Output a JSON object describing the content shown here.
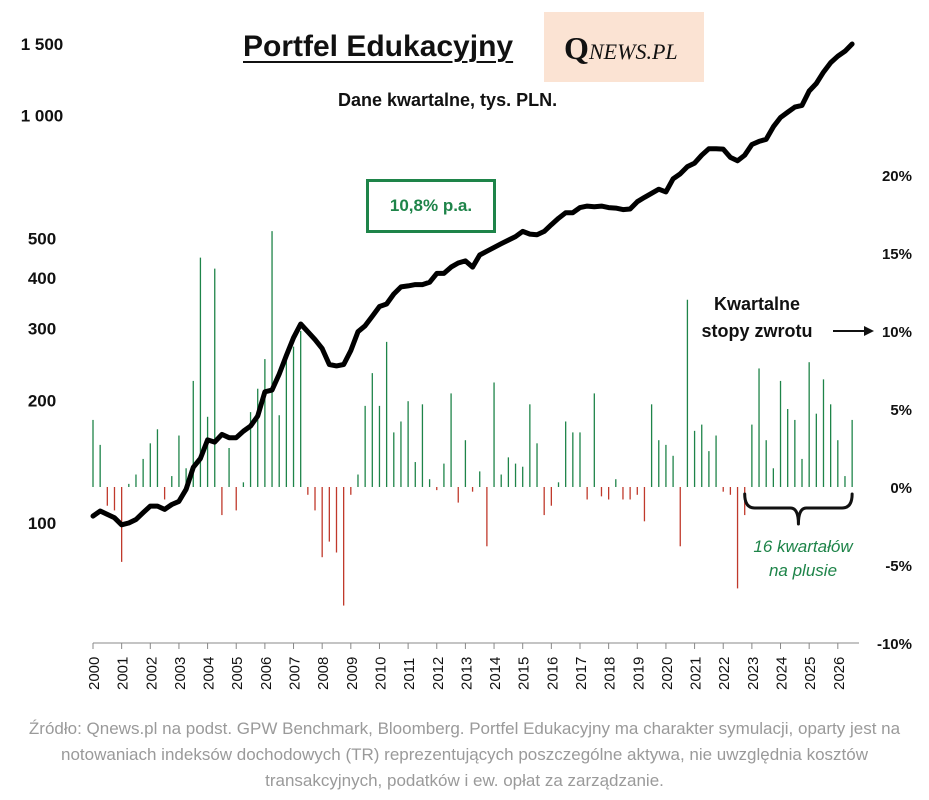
{
  "title": "Portfel Edukacyjny",
  "logo": {
    "q": "Q",
    "rest": "NEWS.PL"
  },
  "subtitle": "Dane kwartalne, tys. PLN.",
  "annotations": {
    "cagr": "10,8% p.a.",
    "returns_label_line1": "Kwartalne",
    "returns_label_line2": "stopy zwrotu",
    "positive_line1": "16 kwartałów",
    "positive_line2": "na plusie"
  },
  "source": "Źródło: Qnews.pl na podst. GPW Benchmark, Bloomberg. Portfel Edukacyjny ma charakter symulacji, oparty jest na notowaniach indeksów dochodowych (TR) reprezentujących poszczególne aktywa, nie uwzględnia kosztów transakcyjnych, podatków i ew. opłat za zarządzanie.",
  "colors": {
    "line": "#000000",
    "positive": "#1e8449",
    "negative": "#c0392b",
    "box_border": "#1e8449",
    "logo_bg": "#fbe3d3",
    "source_text": "#9a9a9a"
  },
  "chart_data": {
    "type": "bar+line",
    "x_axis": {
      "type": "year",
      "range": [
        2000.0,
        2026.6
      ],
      "tick_labels": [
        "2000",
        "2001",
        "2002",
        "2003",
        "2004",
        "2005",
        "2006",
        "2007",
        "2008",
        "2009",
        "2010",
        "2011",
        "2012",
        "2013",
        "2014",
        "2015",
        "2016",
        "2017",
        "2018",
        "2019",
        "2020",
        "2021",
        "2022",
        "2023",
        "2024",
        "2025",
        "2026"
      ]
    },
    "left_axis": {
      "scale": "log",
      "unit": "tys. PLN",
      "range": [
        60,
        1700
      ],
      "ticks": [
        100,
        200,
        300,
        400,
        500,
        1000,
        1500
      ],
      "tick_labels": [
        "100",
        "200",
        "300",
        "400",
        "500",
        "1 000",
        "1 500"
      ]
    },
    "right_axis": {
      "scale": "linear",
      "unit": "%",
      "range": [
        -10,
        22
      ],
      "ticks": [
        -10,
        -5,
        0,
        5,
        10,
        15,
        20
      ],
      "tick_labels": [
        "-10%",
        "-5%",
        "0%",
        "5%",
        "10%",
        "15%",
        "20%"
      ]
    },
    "portfolio_value": {
      "x": [
        2000.0,
        2000.25,
        2000.5,
        2000.75,
        2001.0,
        2001.25,
        2001.5,
        2001.75,
        2002.0,
        2002.25,
        2002.5,
        2002.75,
        2003.0,
        2003.25,
        2003.5,
        2003.75,
        2004.0,
        2004.25,
        2004.5,
        2004.75,
        2005.0,
        2005.25,
        2005.5,
        2005.75,
        2006.0,
        2006.25,
        2006.5,
        2006.75,
        2007.0,
        2007.25,
        2007.5,
        2007.75,
        2008.0,
        2008.25,
        2008.5,
        2008.75,
        2009.0,
        2009.25,
        2009.5,
        2009.75,
        2010.0,
        2010.25,
        2010.5,
        2010.75,
        2011.0,
        2011.25,
        2011.5,
        2011.75,
        2012.0,
        2012.25,
        2012.5,
        2012.75,
        2013.0,
        2013.25,
        2013.5,
        2013.75,
        2014.0,
        2014.25,
        2014.5,
        2014.75,
        2015.0,
        2015.25,
        2015.5,
        2015.75,
        2016.0,
        2016.25,
        2016.5,
        2016.75,
        2017.0,
        2017.25,
        2017.5,
        2017.75,
        2018.0,
        2018.25,
        2018.5,
        2018.75,
        2019.0,
        2019.25,
        2019.5,
        2019.75,
        2020.0,
        2020.25,
        2020.5,
        2020.75,
        2021.0,
        2021.25,
        2021.5,
        2021.75,
        2022.0,
        2022.25,
        2022.5,
        2022.75,
        2023.0,
        2023.25,
        2023.5,
        2023.75,
        2024.0,
        2024.25,
        2024.5,
        2024.75,
        2025.0,
        2025.25,
        2025.5,
        2025.75,
        2026.0,
        2026.25,
        2026.5
      ],
      "y": [
        104,
        107,
        105,
        103,
        99,
        100,
        102,
        106,
        110,
        110,
        108,
        111,
        113,
        121,
        137,
        144,
        160,
        158,
        165,
        162,
        162,
        168,
        173,
        183,
        210,
        212,
        232,
        258,
        285,
        308,
        295,
        282,
        268,
        245,
        243,
        245,
        265,
        295,
        305,
        322,
        340,
        345,
        365,
        380,
        382,
        385,
        385,
        390,
        410,
        410,
        425,
        435,
        440,
        425,
        455,
        465,
        475,
        485,
        495,
        505,
        520,
        512,
        510,
        520,
        540,
        560,
        578,
        578,
        595,
        600,
        598,
        600,
        595,
        593,
        588,
        590,
        615,
        630,
        645,
        660,
        650,
        700,
        720,
        750,
        765,
        800,
        830,
        830,
        828,
        790,
        775,
        800,
        850,
        865,
        875,
        940,
        990,
        1020,
        1050,
        1060,
        1150,
        1200,
        1280,
        1350,
        1400,
        1440,
        1500
      ]
    },
    "quarterly_returns": {
      "x": [
        2000.0,
        2000.25,
        2000.5,
        2000.75,
        2001.0,
        2001.25,
        2001.5,
        2001.75,
        2002.0,
        2002.25,
        2002.5,
        2002.75,
        2003.0,
        2003.25,
        2003.5,
        2003.75,
        2004.0,
        2004.25,
        2004.5,
        2004.75,
        2005.0,
        2005.25,
        2005.5,
        2005.75,
        2006.0,
        2006.25,
        2006.5,
        2006.75,
        2007.0,
        2007.25,
        2007.5,
        2007.75,
        2008.0,
        2008.25,
        2008.5,
        2008.75,
        2009.0,
        2009.25,
        2009.5,
        2009.75,
        2010.0,
        2010.25,
        2010.5,
        2010.75,
        2011.0,
        2011.25,
        2011.5,
        2011.75,
        2012.0,
        2012.25,
        2012.5,
        2012.75,
        2013.0,
        2013.25,
        2013.5,
        2013.75,
        2014.0,
        2014.25,
        2014.5,
        2014.75,
        2015.0,
        2015.25,
        2015.5,
        2015.75,
        2016.0,
        2016.25,
        2016.5,
        2016.75,
        2017.0,
        2017.25,
        2017.5,
        2017.75,
        2018.0,
        2018.25,
        2018.5,
        2018.75,
        2019.0,
        2019.25,
        2019.5,
        2019.75,
        2020.0,
        2020.25,
        2020.5,
        2020.75,
        2021.0,
        2021.25,
        2021.5,
        2021.75,
        2022.0,
        2022.25,
        2022.5,
        2022.75,
        2023.0,
        2023.25,
        2023.5,
        2023.75,
        2024.0,
        2024.25,
        2024.5,
        2024.75,
        2025.0,
        2025.25,
        2025.5,
        2025.75,
        2026.0,
        2026.25,
        2026.5
      ],
      "y": [
        4.3,
        2.7,
        -1.2,
        -1.5,
        -4.8,
        0.2,
        0.8,
        1.8,
        2.8,
        3.7,
        -0.8,
        0.7,
        3.3,
        1.2,
        6.8,
        14.7,
        4.5,
        14,
        -1.8,
        2.5,
        -1.5,
        0.3,
        4.8,
        6.3,
        8.2,
        16.4,
        4.6,
        8.5,
        9,
        10,
        -0.5,
        -1.5,
        -4.5,
        -3.5,
        -4.2,
        -7.6,
        -0.5,
        0.8,
        5.2,
        7.3,
        5.2,
        9.3,
        3.5,
        4.2,
        5.5,
        1.6,
        5.3,
        0.5,
        -0.2,
        1.5,
        6,
        -1,
        3,
        -0.3,
        1,
        -3.8,
        6.7,
        0.8,
        1.9,
        1.5,
        1.3,
        5.3,
        2.8,
        -1.8,
        -1.2,
        0.3,
        4.2,
        3.5,
        3.5,
        -0.8,
        6,
        -0.6,
        -0.8,
        0.5,
        -0.8,
        -0.8,
        -0.5,
        -2.2,
        5.3,
        3,
        2.7,
        2,
        -3.8,
        12,
        3.6,
        4,
        2.3,
        3.3,
        -0.3,
        -0.5,
        -6.5,
        -1.8,
        4,
        7.6,
        3,
        1.2,
        6.8,
        5,
        4.3,
        1.8,
        8,
        4.7,
        6.9,
        5.3,
        3,
        0.7,
        4.3
      ]
    }
  }
}
